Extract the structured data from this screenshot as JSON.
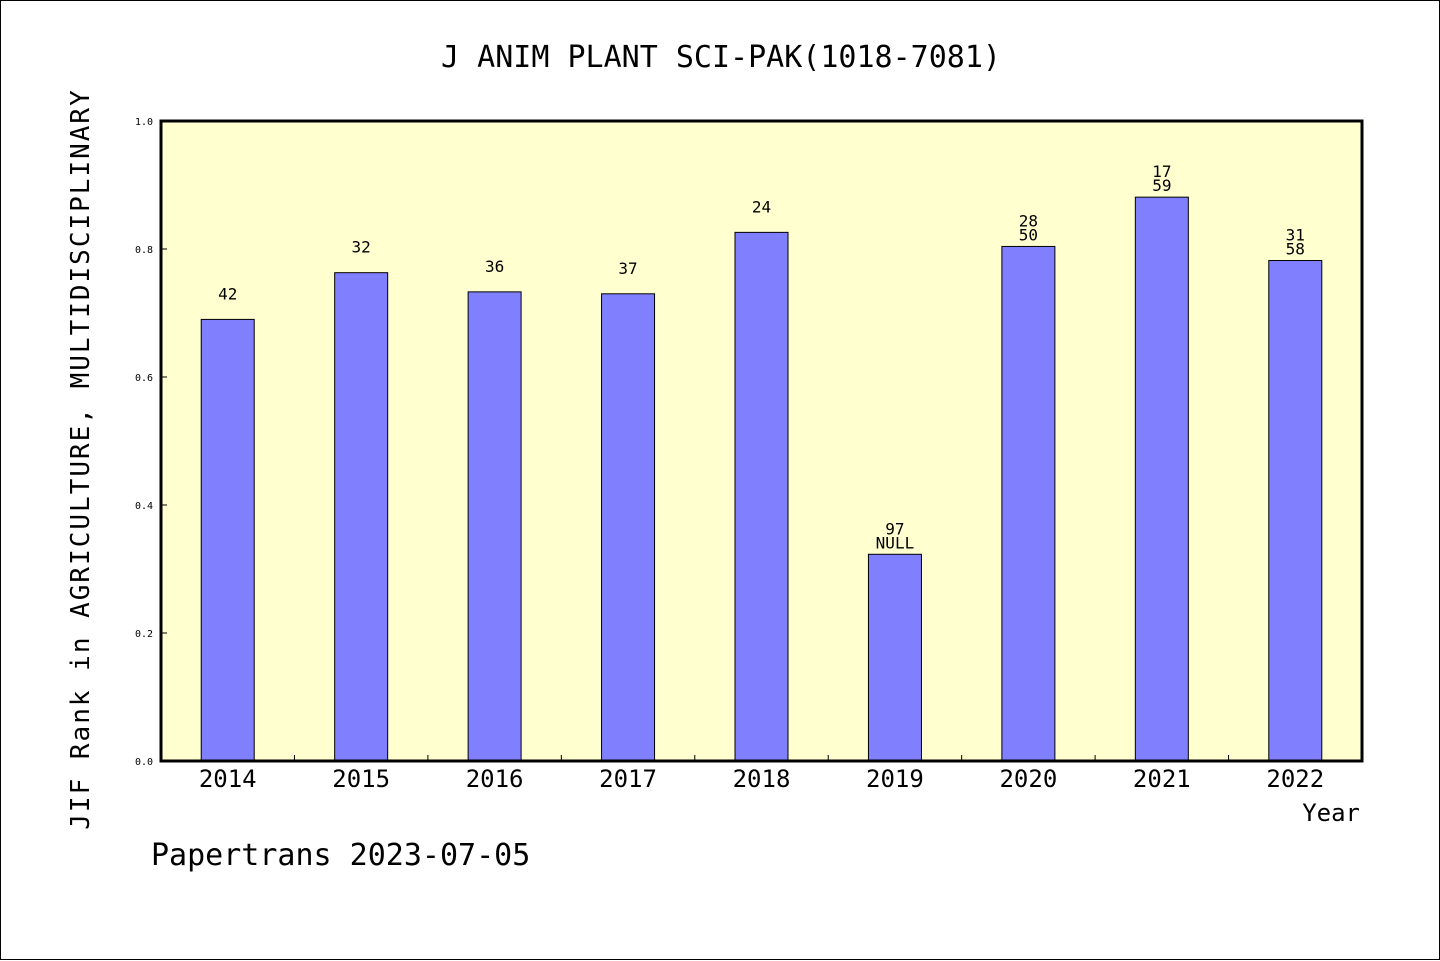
{
  "chart_data": {
    "type": "bar",
    "title": "J ANIM PLANT SCI-PAK(1018-7081)",
    "xlabel": "Year",
    "ylabel": "JIF Rank in AGRICULTURE, MULTIDISCIPLINARY",
    "ylim": [
      0,
      1.0
    ],
    "yticks": [
      "0.0",
      "0.2",
      "0.4",
      "0.6",
      "0.8",
      "1.0"
    ],
    "categories": [
      "2014",
      "2015",
      "2016",
      "2017",
      "2018",
      "2019",
      "2020",
      "2021",
      "2022"
    ],
    "values": [
      0.69,
      0.763,
      0.733,
      0.73,
      0.826,
      0.323,
      0.804,
      0.881,
      0.782
    ],
    "labels_top": [
      "",
      "",
      "",
      "",
      "",
      "97",
      "28",
      "17",
      "31"
    ],
    "labels_bottom": [
      "42",
      "32",
      "36",
      "37",
      "24",
      "NULL",
      "50",
      "59",
      "58"
    ],
    "colors": {
      "bar_fill": "#8080ff",
      "plot_bg": "#ffffd0"
    }
  },
  "footer": "Papertrans 2023-07-05"
}
